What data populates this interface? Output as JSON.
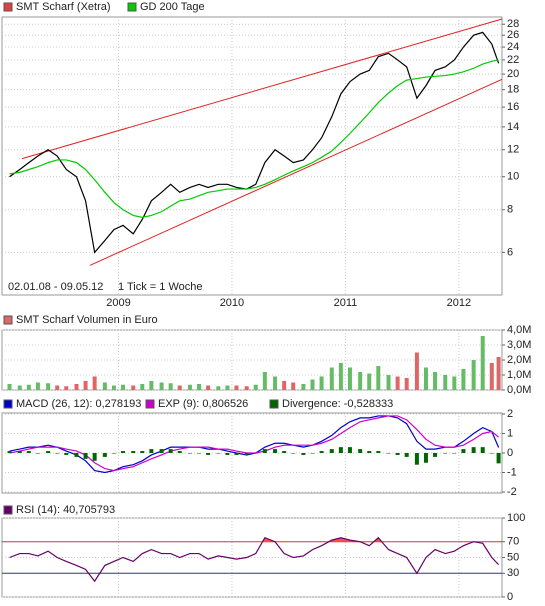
{
  "chart_data": [
    {
      "type": "line",
      "log_scale": true,
      "grid": true,
      "date_range": "02.01.08 - 09.05.12",
      "tick_note": "1 Tick = 1 Woche",
      "x": [
        2008.04,
        2008.13,
        2008.21,
        2008.29,
        2008.38,
        2008.46,
        2008.54,
        2008.63,
        2008.71,
        2008.79,
        2008.88,
        2008.96,
        2009.04,
        2009.13,
        2009.21,
        2009.29,
        2009.38,
        2009.46,
        2009.54,
        2009.63,
        2009.71,
        2009.79,
        2009.88,
        2009.96,
        2010.04,
        2010.13,
        2010.21,
        2010.29,
        2010.38,
        2010.46,
        2010.54,
        2010.63,
        2010.71,
        2010.79,
        2010.88,
        2010.96,
        2011.04,
        2011.13,
        2011.21,
        2011.29,
        2011.38,
        2011.46,
        2011.54,
        2011.63,
        2011.71,
        2011.79,
        2011.88,
        2011.96,
        2012.04,
        2012.13,
        2012.21,
        2012.29,
        2012.35
      ],
      "series": [
        {
          "name": "SMT Scharf (Xetra)",
          "color": "#000000",
          "legend_color": "#e04040",
          "values": [
            10,
            10.5,
            11,
            11.5,
            12,
            11.5,
            10.5,
            10,
            8.5,
            6,
            6.5,
            7,
            7.2,
            6.8,
            7.5,
            8.5,
            9,
            9.5,
            9,
            9.3,
            9.5,
            9.3,
            9.5,
            9.5,
            9.3,
            9.2,
            9.5,
            11,
            12,
            11.5,
            11,
            11.2,
            12,
            13,
            15,
            17.5,
            19,
            20,
            20.5,
            22.5,
            23,
            22,
            21,
            17,
            18.5,
            20.5,
            21,
            22,
            24,
            26,
            26.5,
            24.5,
            21.5
          ]
        },
        {
          "name": "GD 200 Tage",
          "color": "#00cc00",
          "legend_color": "#00cc00",
          "values": [
            10.2,
            10.3,
            10.5,
            10.7,
            11,
            11.2,
            11.2,
            11,
            10.5,
            9.8,
            9,
            8.4,
            8,
            7.7,
            7.6,
            7.7,
            7.9,
            8.2,
            8.5,
            8.6,
            8.8,
            9,
            9.1,
            9.2,
            9.2,
            9.2,
            9.3,
            9.5,
            9.8,
            10.1,
            10.4,
            10.7,
            11,
            11.4,
            11.9,
            12.6,
            13.4,
            14.4,
            15.4,
            16.5,
            17.6,
            18.5,
            19.2,
            19.4,
            19.6,
            19.7,
            19.8,
            20,
            20.3,
            20.8,
            21.4,
            21.8,
            22
          ]
        }
      ],
      "trendlines": {
        "color": "#e02020",
        "lines": [
          {
            "x": [
              2008.15,
              2012.38
            ],
            "y": [
              11.3,
              29
            ]
          },
          {
            "x": [
              2008.75,
              2012.38
            ],
            "y": [
              5.5,
              19.3
            ]
          }
        ]
      },
      "xlim": [
        2008,
        2012.38
      ],
      "xticks": [
        2009,
        2010,
        2011,
        2012
      ],
      "ylim": [
        4.5,
        29.4
      ],
      "yticks": [
        6,
        8,
        10,
        12,
        14,
        16,
        18,
        20,
        22,
        24,
        26,
        28
      ]
    },
    {
      "type": "bar",
      "grid": true,
      "up_color": "#66bb66",
      "down_color": "#dd6666",
      "series": [
        {
          "name": "SMT Scharf Volumen in Euro",
          "color": "#dd6666",
          "values": [
            400000,
            300000,
            350000,
            500000,
            450000,
            300000,
            250000,
            400000,
            600000,
            900000,
            500000,
            300000,
            350000,
            300000,
            400000,
            600000,
            500000,
            450000,
            300000,
            350000,
            400000,
            300000,
            250000,
            300000,
            300000,
            250000,
            350000,
            1200000,
            900000,
            600000,
            500000,
            400000,
            700000,
            900000,
            1500000,
            1800000,
            1500000,
            1200000,
            1100000,
            1600000,
            1000000,
            900000,
            800000,
            2500000,
            1500000,
            1200000,
            1000000,
            900000,
            1400000,
            2000000,
            3600000,
            1800000,
            2200000
          ]
        }
      ],
      "ylim": [
        0,
        4000000
      ],
      "yticks": [
        {
          "value": 0,
          "label": "0,0M"
        },
        {
          "value": 1000000,
          "label": "1,0M"
        },
        {
          "value": 2000000,
          "label": "2,0M"
        },
        {
          "value": 3000000,
          "label": "3,0M"
        },
        {
          "value": 4000000,
          "label": "4,0M"
        }
      ]
    },
    {
      "type": "line",
      "grid": true,
      "series": [
        {
          "name": "MACD (26, 12): 0,278193",
          "color": "#0000cc",
          "values": [
            0.1,
            0.2,
            0.3,
            0.3,
            0.4,
            0.3,
            0.1,
            -0.1,
            -0.4,
            -0.9,
            -1,
            -0.9,
            -0.7,
            -0.6,
            -0.4,
            -0.1,
            0.1,
            0.3,
            0.3,
            0.3,
            0.3,
            0.2,
            0.2,
            0.1,
            0,
            -0.1,
            0,
            0.3,
            0.5,
            0.5,
            0.4,
            0.3,
            0.4,
            0.6,
            0.9,
            1.3,
            1.6,
            1.8,
            1.8,
            1.9,
            1.9,
            1.8,
            1.5,
            0.6,
            0.2,
            0.2,
            0.3,
            0.3,
            0.6,
            1,
            1.3,
            1.1,
            0.28
          ]
        },
        {
          "name": "EXP (9): 0,806526",
          "color": "#cc00cc",
          "values": [
            0,
            0.1,
            0.2,
            0.3,
            0.3,
            0.3,
            0.2,
            0.1,
            -0.1,
            -0.5,
            -0.8,
            -0.9,
            -0.8,
            -0.7,
            -0.5,
            -0.3,
            -0.1,
            0.1,
            0.2,
            0.3,
            0.3,
            0.3,
            0.2,
            0.2,
            0.1,
            0,
            0,
            0.1,
            0.3,
            0.4,
            0.4,
            0.4,
            0.4,
            0.5,
            0.7,
            1,
            1.3,
            1.6,
            1.7,
            1.8,
            1.9,
            1.9,
            1.7,
            1.2,
            0.7,
            0.4,
            0.3,
            0.3,
            0.4,
            0.7,
            1,
            1.1,
            0.81
          ]
        },
        {
          "name": "Divergence: -0,528333",
          "color": "#006600",
          "kind": "bar",
          "values": [
            0.1,
            0.1,
            0.1,
            0,
            0.1,
            0,
            -0.1,
            -0.2,
            -0.3,
            -0.4,
            -0.2,
            0,
            0.1,
            0.1,
            0.1,
            0.2,
            0.2,
            0.2,
            0.1,
            0,
            0,
            -0.1,
            0,
            -0.1,
            -0.1,
            -0.1,
            0,
            0.2,
            0.2,
            0.1,
            0,
            -0.1,
            0,
            0.1,
            0.2,
            0.3,
            0.3,
            0.2,
            0.1,
            0.1,
            0,
            -0.1,
            -0.2,
            -0.6,
            -0.5,
            -0.2,
            0,
            0,
            0.2,
            0.3,
            0.3,
            0,
            -0.53
          ]
        }
      ],
      "ylim": [
        -2.05,
        2.05
      ],
      "yticks": [
        -2,
        -1,
        0,
        1,
        2
      ]
    },
    {
      "type": "line",
      "grid": true,
      "fill_color": "#ff5050",
      "series": [
        {
          "name": "RSI (14): 40,705793",
          "color": "#660066",
          "values": [
            50,
            55,
            55,
            52,
            58,
            50,
            45,
            40,
            35,
            20,
            40,
            45,
            50,
            45,
            55,
            60,
            55,
            55,
            50,
            55,
            55,
            48,
            52,
            50,
            48,
            50,
            55,
            75,
            70,
            55,
            50,
            52,
            60,
            65,
            72,
            75,
            72,
            70,
            65,
            75,
            60,
            55,
            50,
            30,
            50,
            60,
            55,
            58,
            65,
            70,
            68,
            50,
            41
          ]
        }
      ],
      "reference_lines": [
        {
          "value": 70,
          "color": "#e03030"
        },
        {
          "value": 30,
          "color": "#333399"
        }
      ],
      "ylim": [
        0,
        100
      ],
      "yticks": [
        0,
        30,
        50,
        70,
        100
      ]
    }
  ]
}
